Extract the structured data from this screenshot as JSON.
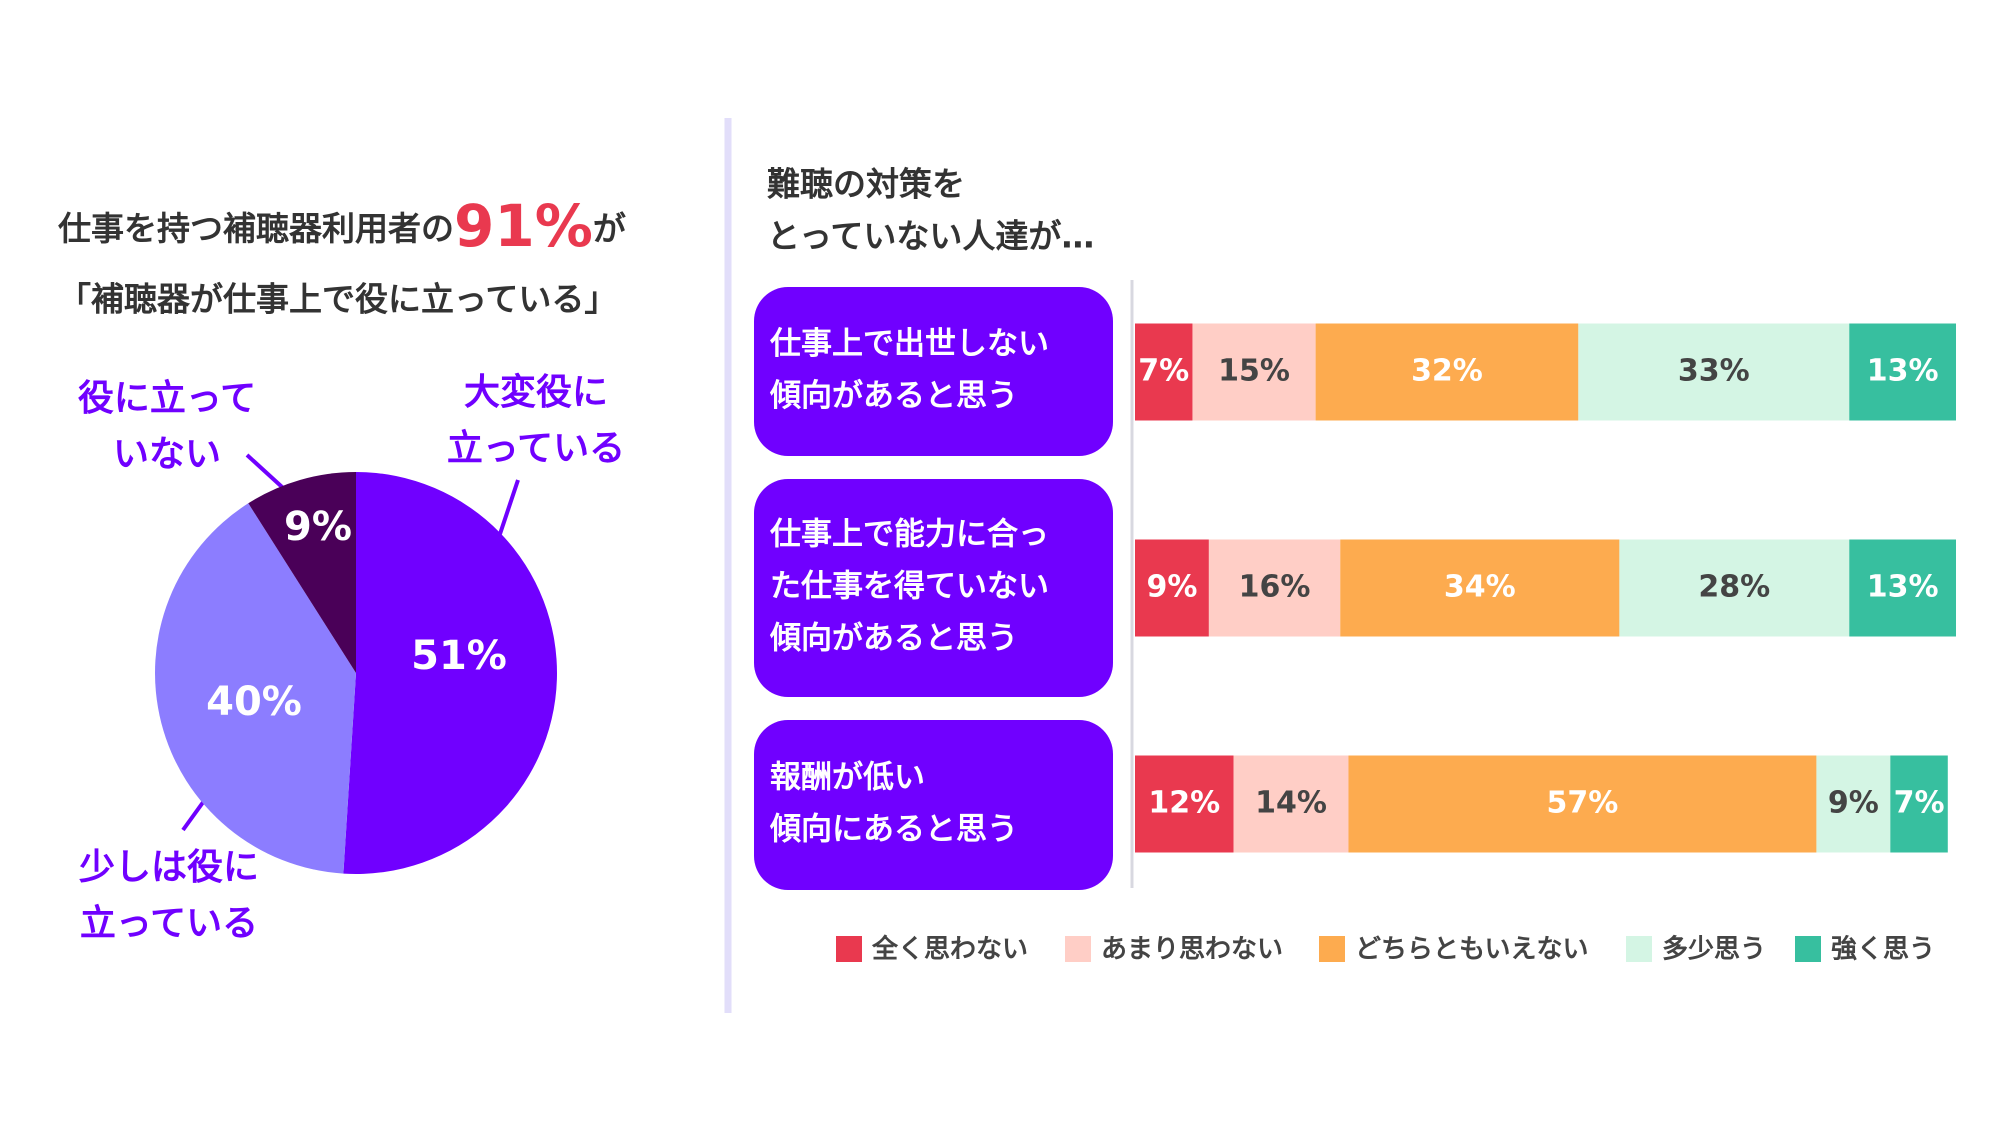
{
  "chart_data": [
    {
      "type": "pie",
      "title": {
        "before": "仕事を持つ補聴器利用者の",
        "highlight": "91%",
        "after": "が",
        "line2": "「補聴器が仕事上で役に立っている」"
      },
      "categories": [
        [
          "大変役に",
          "立っている"
        ],
        [
          "少しは役に",
          "立っている"
        ],
        [
          "役に立って",
          "いない"
        ]
      ],
      "values": [
        51,
        40,
        9
      ],
      "value_labels": [
        "51%",
        "40%",
        "9%"
      ],
      "colors": [
        "#7000ff",
        "#8c7dff",
        "#4a0058"
      ]
    },
    {
      "type": "stacked-bar-horizontal",
      "title": [
        "難聴の対策を",
        "とっていない人達が…"
      ],
      "categories": [
        [
          "仕事上で出世しない",
          "傾向があると思う"
        ],
        [
          "仕事上で能力に合っ",
          "た仕事を得ていない",
          "傾向があると思う"
        ],
        [
          "報酬が低い",
          "傾向にあると思う"
        ]
      ],
      "xlim": [
        0,
        100
      ],
      "series": [
        {
          "name": "全く思わない",
          "color": "#e9394f",
          "label_color": "#ffffff",
          "values": [
            7,
            9,
            12
          ],
          "value_labels": [
            "7%",
            "9%",
            "12%"
          ]
        },
        {
          "name": "あまり思わない",
          "color": "#ffcec6",
          "label_color": "#444444",
          "values": [
            15,
            16,
            14
          ],
          "value_labels": [
            "15%",
            "16%",
            "14%"
          ]
        },
        {
          "name": "どちらともいえない",
          "color": "#fdab4f",
          "label_color": "#ffffff",
          "values": [
            32,
            34,
            57
          ],
          "value_labels": [
            "32%",
            "34%",
            "57%"
          ]
        },
        {
          "name": "多少思う",
          "color": "#d4f5e4",
          "label_color": "#444444",
          "values": [
            33,
            28,
            9
          ],
          "value_labels": [
            "33%",
            "28%",
            "9%"
          ]
        },
        {
          "name": "強く思う",
          "color": "#37bf9f",
          "label_color": "#ffffff",
          "values": [
            13,
            13,
            7
          ],
          "value_labels": [
            "13%",
            "13%",
            "7%"
          ]
        }
      ]
    }
  ]
}
